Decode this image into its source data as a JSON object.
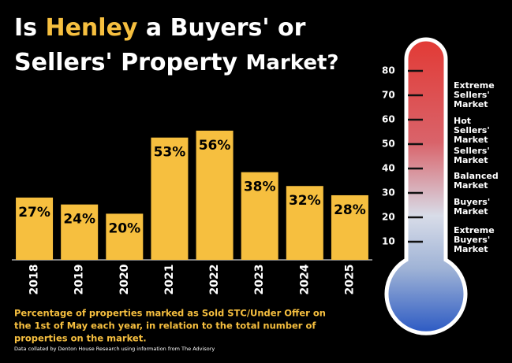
{
  "title": {
    "before": "Is ",
    "highlight": "Henley",
    "after": " a Buyers' or",
    "line2": "Sellers' Property",
    "line2_end": "Market?"
  },
  "chart_data": {
    "type": "bar",
    "categories": [
      "2018",
      "2019",
      "2020",
      "2021",
      "2022",
      "2023",
      "2024",
      "2025"
    ],
    "values": [
      27,
      24,
      20,
      53,
      56,
      38,
      32,
      28
    ],
    "value_labels": [
      "27%",
      "24%",
      "20%",
      "53%",
      "56%",
      "38%",
      "32%",
      "28%"
    ],
    "color": "#f6bf3f"
  },
  "thermometer": {
    "ylim": [
      0,
      80
    ],
    "yticks": [
      10,
      20,
      30,
      40,
      50,
      60,
      70,
      80
    ],
    "zones": [
      [
        "Extreme",
        "Sellers'",
        "Market"
      ],
      [
        "Hot",
        "Sellers'",
        "Market"
      ],
      [
        "Sellers'",
        "Market"
      ],
      [
        "Balanced",
        "Market"
      ],
      [
        "Buyers'",
        "Market"
      ],
      [
        "Extreme",
        " Buyers'",
        "Market"
      ]
    ]
  },
  "caption": [
    "Percentage of properties marked as Sold STC/Under Offer on",
    "the 1st of May each year, in relation to the total number of",
    "properties on the market."
  ],
  "source": "Data collated by Denton House Research using information from The Advisory"
}
